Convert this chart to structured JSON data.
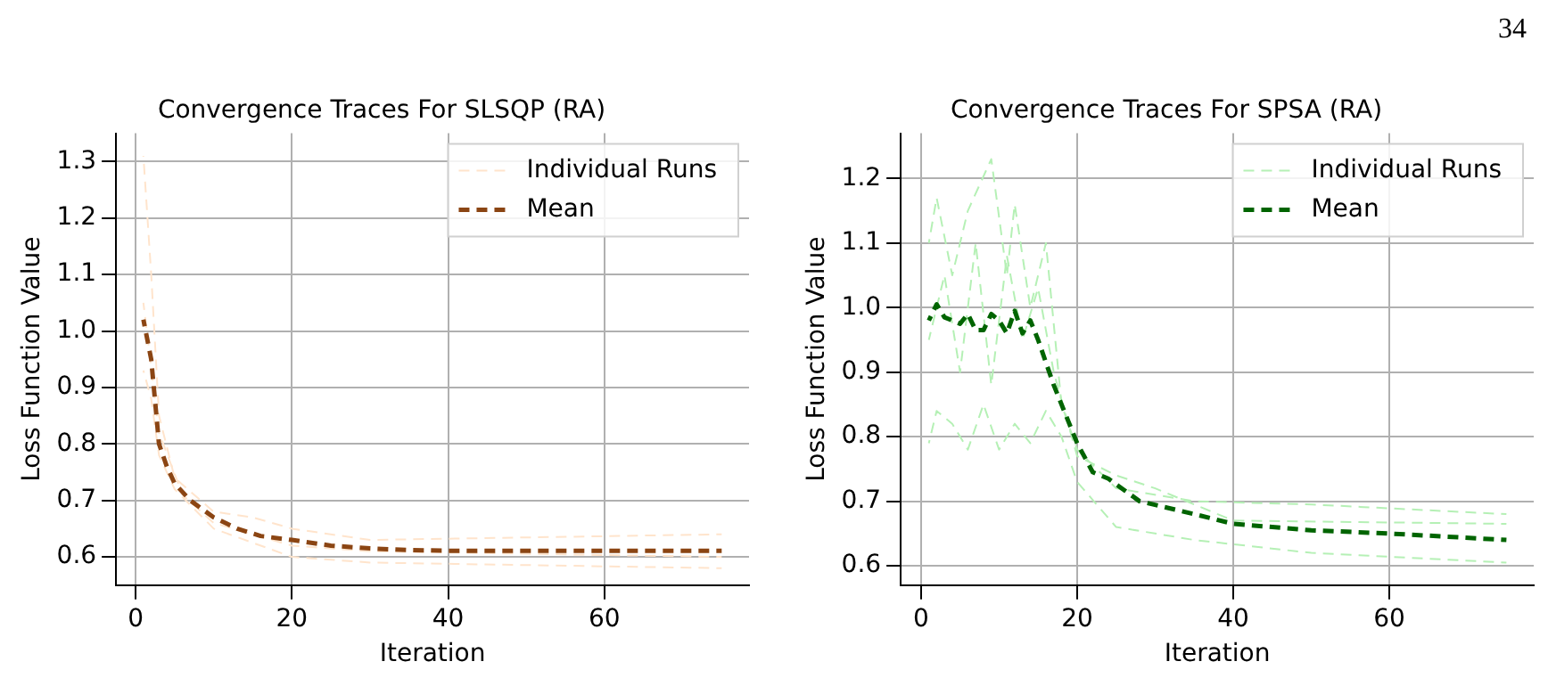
{
  "chart_data": [
    {
      "type": "line",
      "title": "Convergence Traces For SLSQP (RA)",
      "xlabel": "Iteration",
      "ylabel": "Loss Function Value",
      "xlim": [
        -2.5,
        78.5
      ],
      "xticks": [
        0,
        20,
        40,
        60
      ],
      "ylim": [
        0.55,
        1.35
      ],
      "yticks": [
        0.6,
        0.7,
        0.8,
        0.9,
        {
          "value": 1,
          "label": "1.0"
        },
        1.1,
        1.2,
        1.3
      ],
      "grid": true,
      "legend": "top right",
      "line_style": "dashed",
      "marker": "none",
      "series": [
        {
          "name": "Individual Runs",
          "color": "#ffe4cc",
          "x": [
            1,
            2,
            3,
            5,
            10,
            15,
            20,
            30,
            75
          ],
          "values": [
            1.31,
            1.1,
            0.85,
            0.74,
            0.68,
            0.67,
            0.65,
            0.63,
            0.64
          ]
        },
        {
          "color": "#ffe4cc",
          "x": [
            1,
            2,
            3,
            5,
            10,
            20,
            30,
            75
          ],
          "values": [
            0.93,
            0.88,
            0.78,
            0.72,
            0.65,
            0.6,
            0.59,
            0.58
          ]
        },
        {
          "color": "#ffe4cc",
          "x": [
            1,
            3,
            6,
            10,
            15,
            20,
            30,
            75
          ],
          "values": [
            1.05,
            0.82,
            0.71,
            0.66,
            0.64,
            0.62,
            0.61,
            0.6
          ]
        },
        {
          "name": "Mean",
          "color": "#8b4513",
          "x": [
            1,
            2,
            3,
            4,
            5,
            7,
            10,
            13,
            16,
            20,
            25,
            30,
            35,
            40,
            75
          ],
          "values": [
            1.02,
            0.95,
            0.8,
            0.76,
            0.73,
            0.7,
            0.67,
            0.65,
            0.637,
            0.63,
            0.62,
            0.615,
            0.612,
            0.611,
            0.611
          ]
        }
      ]
    },
    {
      "type": "line",
      "title": "Convergence Traces For SPSA (RA)",
      "xlabel": "Iteration",
      "ylabel": "Loss Function Value",
      "xlim": [
        -2.6,
        78.5
      ],
      "xticks": [
        0,
        20,
        40,
        60
      ],
      "ylim": [
        0.57,
        1.27
      ],
      "yticks": [
        0.6,
        0.7,
        0.8,
        0.9,
        {
          "value": 1,
          "label": "1.0"
        },
        1.1,
        1.2
      ],
      "grid": true,
      "legend": "top right",
      "line_style": "dashed",
      "marker": "none",
      "annotations": [
        "34"
      ],
      "series": [
        {
          "name": "Individual Runs",
          "color": "#b5f0b5",
          "x": [
            1,
            2,
            4,
            6,
            9,
            11,
            12,
            14,
            16,
            18,
            20,
            25,
            35,
            50,
            75
          ],
          "values": [
            1.1,
            1.17,
            1.05,
            1.15,
            1.23,
            1.05,
            1.16,
            1.0,
            1.1,
            0.85,
            0.78,
            0.72,
            0.7,
            0.695,
            0.68
          ]
        },
        {
          "color": "#b5f0b5",
          "x": [
            1,
            2,
            4,
            6,
            8,
            10,
            12,
            14,
            16,
            18,
            20,
            25,
            35,
            50,
            75
          ],
          "values": [
            0.79,
            0.84,
            0.82,
            0.78,
            0.85,
            0.78,
            0.82,
            0.79,
            0.84,
            0.8,
            0.73,
            0.66,
            0.64,
            0.62,
            0.605
          ]
        },
        {
          "color": "#b5f0b5",
          "x": [
            1,
            3,
            5,
            7,
            9,
            11,
            13,
            15,
            17,
            20,
            25,
            30,
            40,
            75
          ],
          "values": [
            0.95,
            1.05,
            0.9,
            1.1,
            0.88,
            1.08,
            0.95,
            1.03,
            0.9,
            0.77,
            0.74,
            0.72,
            0.67,
            0.665
          ]
        },
        {
          "name": "Mean",
          "color": "#006400",
          "x": [
            1,
            2,
            3,
            5,
            6,
            7,
            8,
            9,
            10,
            11,
            12,
            13,
            14,
            15,
            17,
            19,
            20,
            22,
            24,
            28,
            35,
            40,
            50,
            60,
            75
          ],
          "values": [
            0.98,
            1.005,
            0.985,
            0.975,
            0.99,
            0.965,
            0.965,
            0.99,
            0.98,
            0.96,
            0.995,
            0.96,
            0.98,
            0.95,
            0.88,
            0.82,
            0.79,
            0.745,
            0.735,
            0.7,
            0.68,
            0.665,
            0.655,
            0.65,
            0.64
          ]
        }
      ]
    }
  ]
}
